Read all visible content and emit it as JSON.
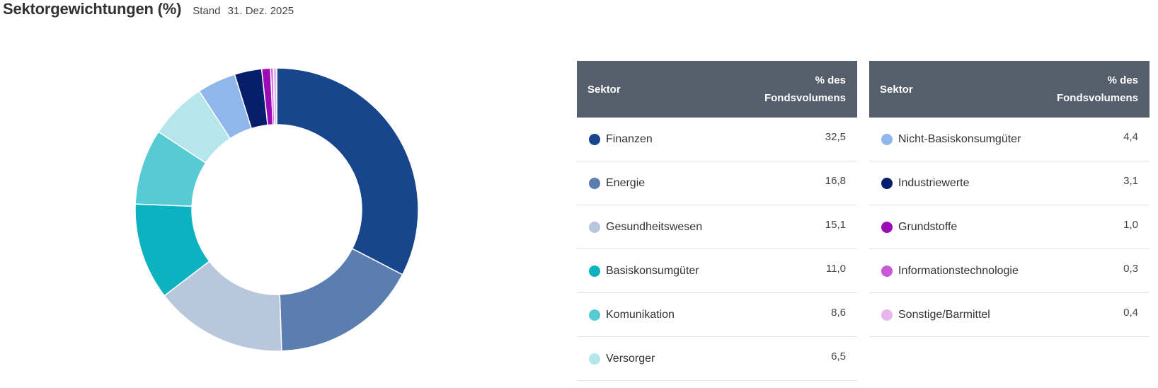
{
  "header": {
    "title": "Sektorgewichtungen (%)",
    "date_prefix": "Stand",
    "date": "31. Dez. 2025"
  },
  "tables": [
    {
      "col_sector": "Sektor",
      "col_pct": "% des Fondsvolumens",
      "rows": [
        {
          "label": "Finanzen",
          "value": "32,5",
          "color": "#17468c"
        },
        {
          "label": "Energie",
          "value": "16,8",
          "color": "#5c7db0"
        },
        {
          "label": "Gesundheitswesen",
          "value": "15,1",
          "color": "#b8c7dc"
        },
        {
          "label": "Basiskonsumgüter",
          "value": "11,0",
          "color": "#0bb3c1"
        },
        {
          "label": "Komunikation",
          "value": "8,6",
          "color": "#56cbd4"
        },
        {
          "label": "Versorger",
          "value": "6,5",
          "color": "#b4e6eb"
        }
      ]
    },
    {
      "col_sector": "Sektor",
      "col_pct": "% des Fondsvolumens",
      "rows": [
        {
          "label": "Nicht-Basiskonsumgüter",
          "value": "4,4",
          "color": "#8fb7ea"
        },
        {
          "label": "Industriewerte",
          "value": "3,1",
          "color": "#061e6b"
        },
        {
          "label": "Grundstoffe",
          "value": "1,0",
          "color": "#9b0bb6"
        },
        {
          "label": "Informationstechnologie",
          "value": "0,3",
          "color": "#c85ad6"
        },
        {
          "label": "Sonstige/Barmittel",
          "value": "0,4",
          "color": "#e6b6ec"
        }
      ]
    }
  ],
  "chart_data": {
    "type": "pie",
    "title": "Sektorgewichtungen (%)",
    "donut": true,
    "categories": [
      "Finanzen",
      "Energie",
      "Gesundheitswesen",
      "Basiskonsumgüter",
      "Komunikation",
      "Versorger",
      "Nicht-Basiskonsumgüter",
      "Industriewerte",
      "Grundstoffe",
      "Informationstechnologie",
      "Sonstige/Barmittel"
    ],
    "values": [
      32.5,
      16.8,
      15.1,
      11.0,
      8.6,
      6.5,
      4.4,
      3.1,
      1.0,
      0.3,
      0.4
    ],
    "colors": [
      "#17468c",
      "#5c7db0",
      "#b8c7dc",
      "#0bb3c1",
      "#56cbd4",
      "#b4e6eb",
      "#8fb7ea",
      "#061e6b",
      "#9b0bb6",
      "#c85ad6",
      "#e6b6ec"
    ]
  }
}
